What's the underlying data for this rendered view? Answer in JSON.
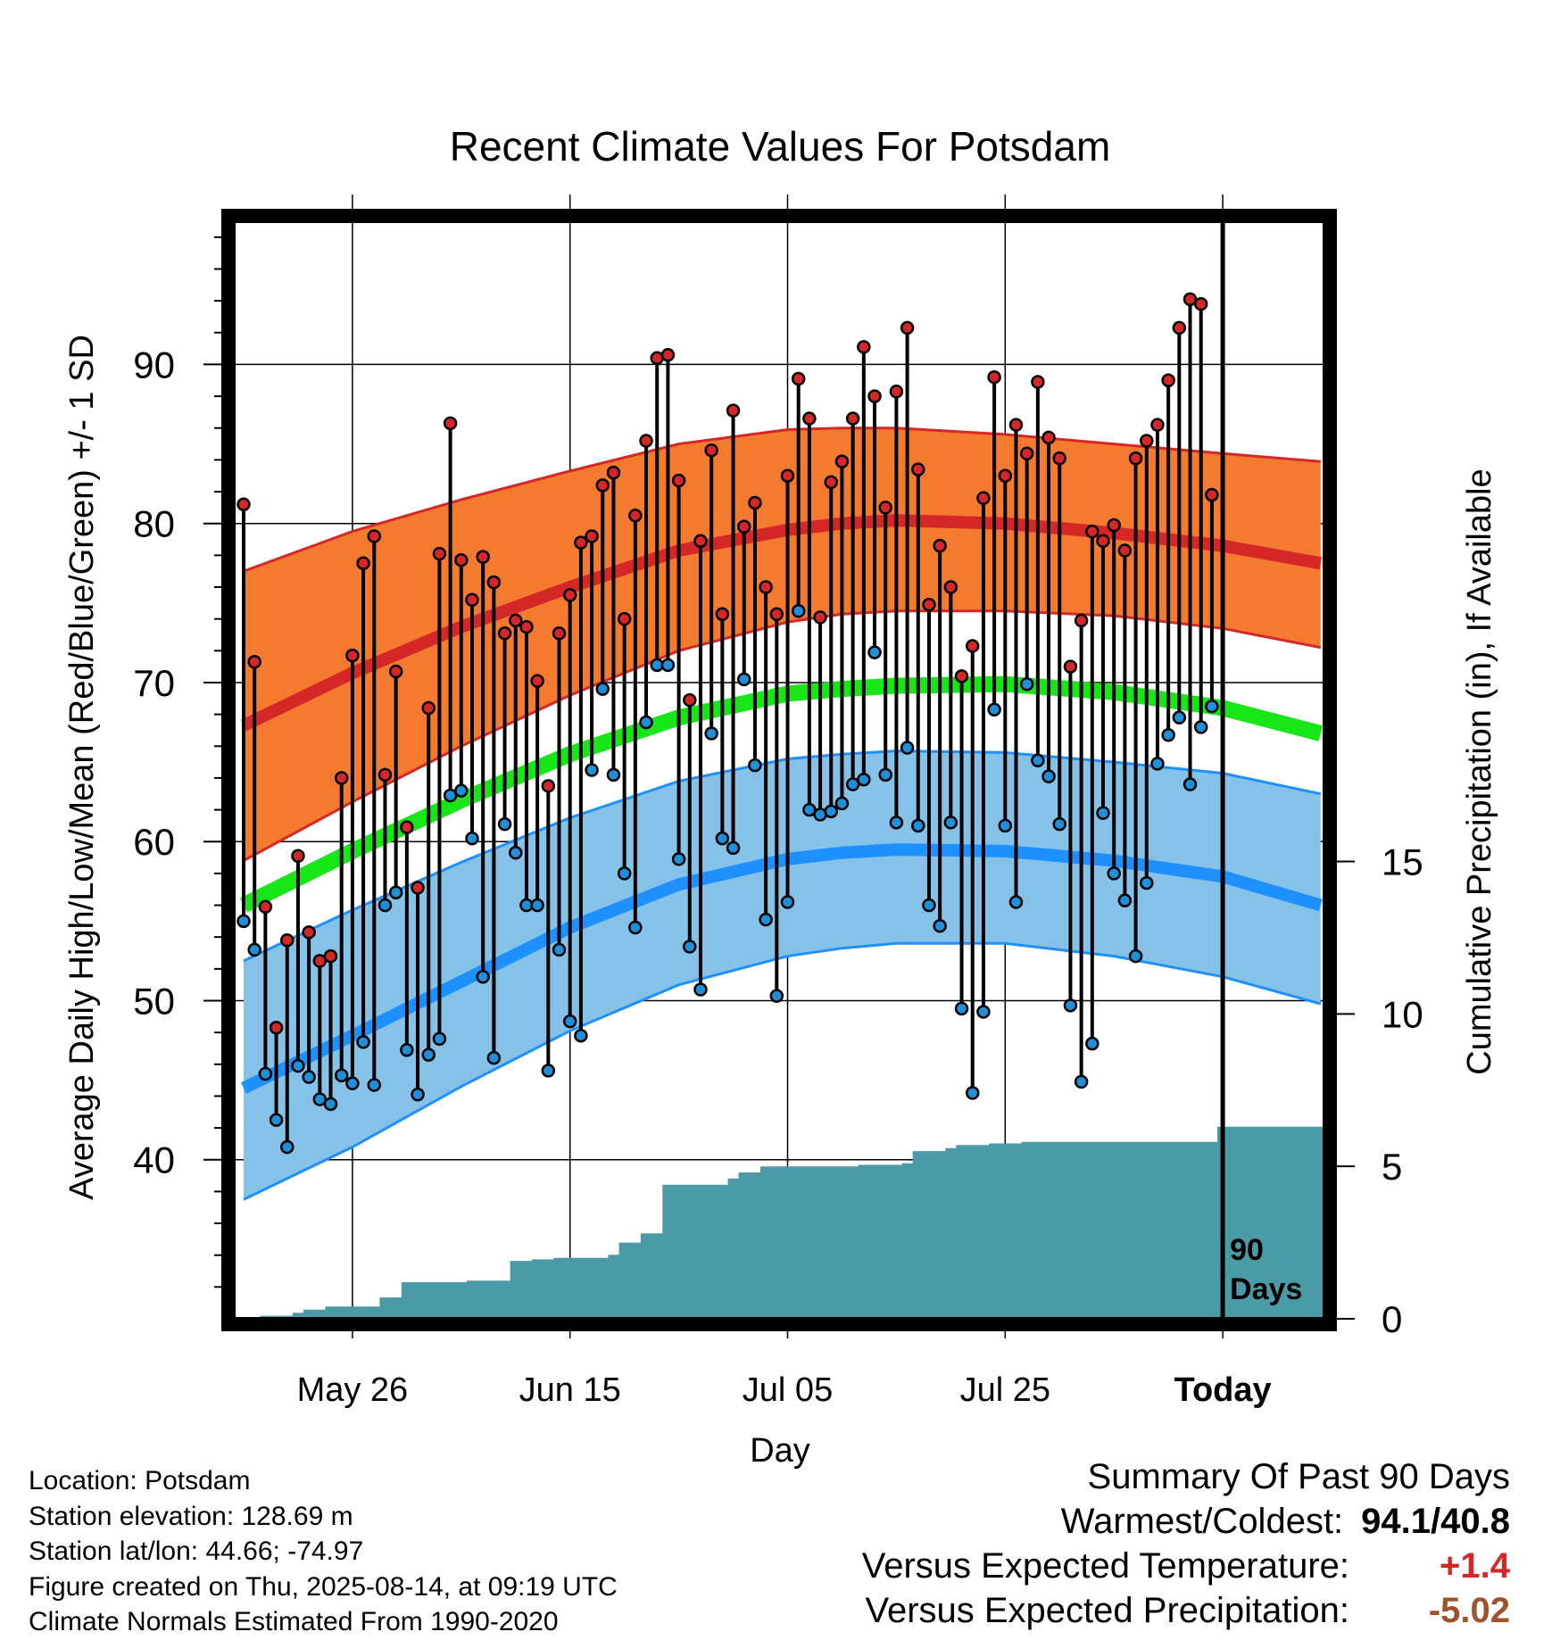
{
  "chart_data": {
    "type": "line",
    "title": "Recent Climate Values For Potsdam",
    "xlabel": "Day",
    "ylabel": "Average Daily High/Low/Mean (Red/Blue/Green) +/- 1 SD",
    "y2label": "Cumulative Precipitation (in), If Available",
    "ylim": [
      30,
      99
    ],
    "y2lim": [
      0,
      36
    ],
    "yticks": [
      40,
      50,
      60,
      70,
      80,
      90
    ],
    "y2ticks": [
      0,
      5,
      10,
      15
    ],
    "xticks": [
      {
        "day": 10,
        "label": "May 26"
      },
      {
        "day": 30,
        "label": "Jun 15"
      },
      {
        "day": 50,
        "label": "Jul 05"
      },
      {
        "day": 70,
        "label": "Jul 25"
      },
      {
        "day": 90,
        "label": "Today"
      }
    ],
    "today_marker": "90\nDays",
    "normals": {
      "days": [
        0,
        10,
        20,
        30,
        40,
        50,
        55,
        60,
        70,
        80,
        90,
        99
      ],
      "high_mean": [
        67.3,
        70.6,
        73.5,
        76.0,
        78.3,
        79.6,
        80.0,
        80.2,
        80.0,
        79.4,
        78.6,
        77.5
      ],
      "high_upper": [
        77.0,
        79.5,
        81.5,
        83.3,
        85.0,
        85.9,
        86.0,
        86.0,
        85.6,
        85.0,
        84.4,
        83.9
      ],
      "high_lower": [
        58.8,
        62.5,
        66.0,
        69.2,
        72.0,
        73.8,
        74.3,
        74.5,
        74.5,
        74.2,
        73.4,
        72.2
      ],
      "mean": [
        56.0,
        59.4,
        62.6,
        65.5,
        67.8,
        69.3,
        69.6,
        69.8,
        69.9,
        69.4,
        68.4,
        66.8
      ],
      "low_mean": [
        44.5,
        47.8,
        51.2,
        54.6,
        57.3,
        58.9,
        59.3,
        59.5,
        59.4,
        58.8,
        57.8,
        56.0
      ],
      "low_upper": [
        52.5,
        55.7,
        58.7,
        61.5,
        63.8,
        65.2,
        65.5,
        65.7,
        65.6,
        65.0,
        64.3,
        63.0
      ],
      "low_lower": [
        37.5,
        40.8,
        44.6,
        48.1,
        51.0,
        52.8,
        53.3,
        53.6,
        53.6,
        52.8,
        51.5,
        49.8
      ]
    },
    "series": [
      {
        "name": "High",
        "color": "#d62728",
        "values": [
          81.2,
          71.3,
          55.9,
          48.3,
          53.8,
          59.1,
          54.3,
          52.5,
          52.8,
          64.0,
          71.7,
          77.5,
          79.2,
          64.2,
          70.7,
          60.9,
          57.1,
          68.4,
          78.1,
          86.3,
          77.7,
          75.2,
          77.9,
          76.3,
          73.1,
          73.9,
          73.5,
          70.1,
          63.5,
          73.1,
          75.5,
          78.8,
          79.2,
          82.4,
          83.2,
          74.0,
          80.5,
          85.2,
          90.4,
          90.6,
          82.7,
          68.9,
          78.9,
          84.6,
          74.3,
          87.1,
          79.8,
          81.3,
          76.0,
          74.3,
          83.0,
          89.1,
          86.6,
          74.1,
          82.6,
          83.9,
          86.6,
          91.1,
          88.0,
          81.0,
          88.3,
          92.3,
          83.4,
          74.9,
          78.6,
          76.0,
          70.4,
          72.3,
          81.6,
          89.2,
          83.0,
          86.2,
          84.4,
          88.9,
          85.4,
          84.1,
          71.0,
          73.9,
          79.5,
          78.9,
          79.9,
          78.3,
          84.1,
          85.2,
          86.2,
          89.0,
          92.3,
          94.1,
          93.8,
          81.8
        ]
      },
      {
        "name": "Low",
        "color": "#1f8fd8",
        "values": [
          55.0,
          53.2,
          45.4,
          42.5,
          40.8,
          45.9,
          45.2,
          43.8,
          43.5,
          45.3,
          44.8,
          47.4,
          44.7,
          56.0,
          56.8,
          46.9,
          44.1,
          46.6,
          47.6,
          62.9,
          63.2,
          60.2,
          51.5,
          46.4,
          61.1,
          59.3,
          56.0,
          56.0,
          45.6,
          53.2,
          48.7,
          47.8,
          64.5,
          69.6,
          64.2,
          58.0,
          54.6,
          67.5,
          71.1,
          71.1,
          58.9,
          53.4,
          50.7,
          66.8,
          60.2,
          59.6,
          70.2,
          64.8,
          55.1,
          50.3,
          56.2,
          74.5,
          62.0,
          61.7,
          61.9,
          62.4,
          63.6,
          63.9,
          71.9,
          64.2,
          61.2,
          65.9,
          61.0,
          56.0,
          54.7,
          61.2,
          49.5,
          44.2,
          49.3,
          68.3,
          61.0,
          56.2,
          69.9,
          65.1,
          64.1,
          61.1,
          49.7,
          44.9,
          47.3,
          61.8,
          58.0,
          56.3,
          52.8,
          57.4,
          64.9,
          66.7,
          67.8,
          63.6,
          67.2,
          68.5
        ]
      },
      {
        "name": "Cumulative Precipitation",
        "color": "#4a9ba5",
        "days": [
          0,
          1,
          2,
          3,
          4,
          5,
          6,
          7,
          8,
          9,
          10,
          11,
          12,
          13,
          14,
          15,
          16,
          17,
          18,
          19,
          20,
          21,
          22,
          23,
          24,
          25,
          26,
          27,
          28,
          29,
          30,
          31,
          32,
          33,
          34,
          35,
          36,
          37,
          38,
          39,
          40,
          41,
          42,
          43,
          44,
          45,
          46,
          47,
          48,
          49,
          50,
          51,
          52,
          53,
          54,
          55,
          56,
          57,
          58,
          59,
          60,
          61,
          62,
          63,
          64,
          65,
          66,
          67,
          68,
          69,
          70,
          71,
          72,
          73,
          74,
          75,
          76,
          77,
          78,
          79,
          80,
          81,
          82,
          83,
          84,
          85,
          86,
          87,
          88,
          89,
          90,
          91,
          92,
          93,
          94,
          95,
          96,
          97,
          98,
          99
        ],
        "values": [
          0.0,
          0.0,
          0.1,
          0.1,
          0.1,
          0.2,
          0.3,
          0.3,
          0.4,
          0.4,
          0.4,
          0.4,
          0.4,
          0.7,
          0.7,
          1.2,
          1.2,
          1.2,
          1.2,
          1.2,
          1.2,
          1.25,
          1.25,
          1.25,
          1.25,
          1.9,
          1.9,
          1.95,
          1.95,
          2.0,
          2.0,
          2.0,
          2.0,
          2.0,
          2.1,
          2.5,
          2.5,
          2.8,
          2.8,
          4.4,
          4.4,
          4.4,
          4.4,
          4.4,
          4.4,
          4.6,
          4.8,
          4.8,
          5.0,
          5.0,
          5.0,
          5.0,
          5.0,
          5.0,
          5.0,
          5.0,
          5.0,
          5.05,
          5.05,
          5.05,
          5.05,
          5.1,
          5.5,
          5.5,
          5.5,
          5.6,
          5.7,
          5.7,
          5.7,
          5.75,
          5.75,
          5.75,
          5.8,
          5.8,
          5.8,
          5.8,
          5.8,
          5.8,
          5.8,
          5.8,
          5.8,
          5.8,
          5.8,
          5.8,
          5.8,
          5.8,
          5.8,
          5.8,
          5.8,
          5.8,
          6.3,
          6.3,
          6.3,
          6.3,
          6.3,
          6.3,
          6.3,
          6.3,
          6.3,
          6.3
        ]
      }
    ],
    "grid": true
  },
  "footer": {
    "location": "Location: Potsdam",
    "elevation": "Station elevation: 128.69 m",
    "latlon": "Station lat/lon: 44.66; -74.97",
    "created": "Figure created on Thu, 2025-08-14, at 09:19 UTC",
    "normals": "Climate Normals Estimated From 1990-2020"
  },
  "summary": {
    "heading": "Summary Of Past 90 Days",
    "warm_cold_label": "Warmest/Coldest:",
    "warm_cold_value": "94.1/40.8",
    "temp_label": "Versus Expected Temperature:",
    "temp_value": "+1.4",
    "temp_color": "#d62728",
    "precip_label": "Versus Expected Precipitation:",
    "precip_value": "-5.02",
    "precip_color": "#a0522d"
  }
}
